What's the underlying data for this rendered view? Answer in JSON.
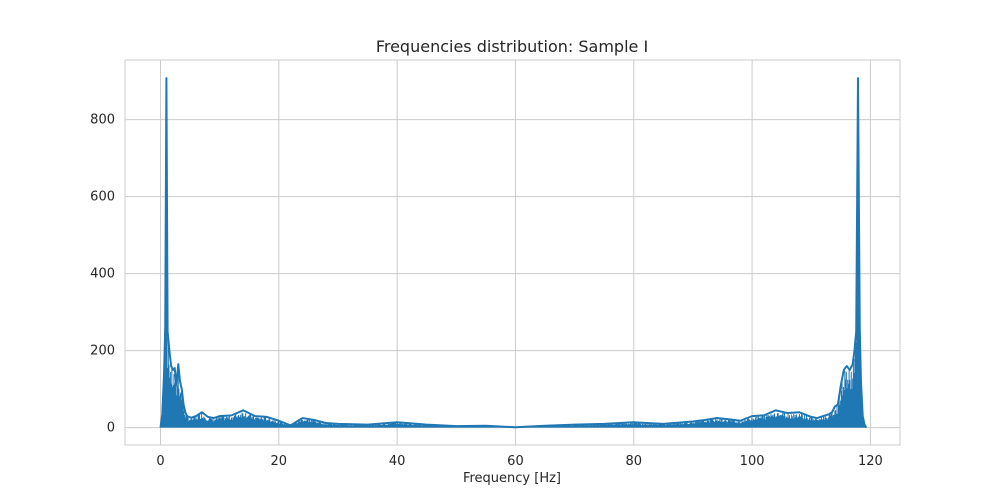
{
  "chart_data": {
    "type": "line",
    "title": "Frequencies distribution: Sample I",
    "xlabel": "Frequency [Hz]",
    "ylabel": "",
    "xlim": [
      -6,
      125
    ],
    "ylim": [
      -45,
      955
    ],
    "x_ticks": [
      0,
      20,
      40,
      60,
      80,
      100,
      120
    ],
    "y_ticks": [
      0,
      200,
      400,
      600,
      800
    ],
    "x_tick_labels": [
      "0",
      "20",
      "40",
      "60",
      "80",
      "100",
      "120"
    ],
    "y_tick_labels": [
      "0",
      "200",
      "400",
      "600",
      "800"
    ],
    "grid": true,
    "series": [
      {
        "color": "#1f77b4",
        "x": [
          0,
          0.3,
          0.6,
          0.8,
          1.0,
          1.2,
          1.5,
          1.8,
          2.1,
          2.4,
          2.7,
          3.0,
          3.3,
          3.6,
          3.9,
          4.2,
          4.5,
          4.8,
          5.2,
          6,
          7,
          8,
          9,
          10,
          12,
          14,
          16,
          18,
          20,
          22,
          24,
          26,
          28,
          30,
          35,
          40,
          45,
          50,
          55,
          60,
          65,
          70,
          75,
          80,
          85,
          90,
          92,
          94,
          96,
          98,
          100,
          102,
          104,
          106,
          108,
          110,
          111,
          112,
          113,
          113.5,
          114,
          114.5,
          115,
          115.5,
          116,
          116.5,
          117,
          117.3,
          117.6,
          117.9,
          118.2,
          118.4,
          118.7,
          119.0,
          119.3
        ],
        "y": [
          0,
          35,
          140,
          260,
          908,
          250,
          200,
          160,
          150,
          155,
          110,
          165,
          120,
          100,
          60,
          40,
          30,
          28,
          26,
          30,
          40,
          28,
          25,
          30,
          32,
          45,
          30,
          28,
          18,
          6,
          25,
          20,
          12,
          10,
          8,
          14,
          8,
          4,
          5,
          1,
          5,
          8,
          10,
          14,
          10,
          16,
          20,
          25,
          22,
          18,
          30,
          32,
          45,
          38,
          40,
          28,
          25,
          30,
          35,
          40,
          55,
          60,
          110,
          150,
          160,
          150,
          165,
          200,
          250,
          908,
          255,
          120,
          30,
          8,
          0
        ]
      }
    ]
  }
}
